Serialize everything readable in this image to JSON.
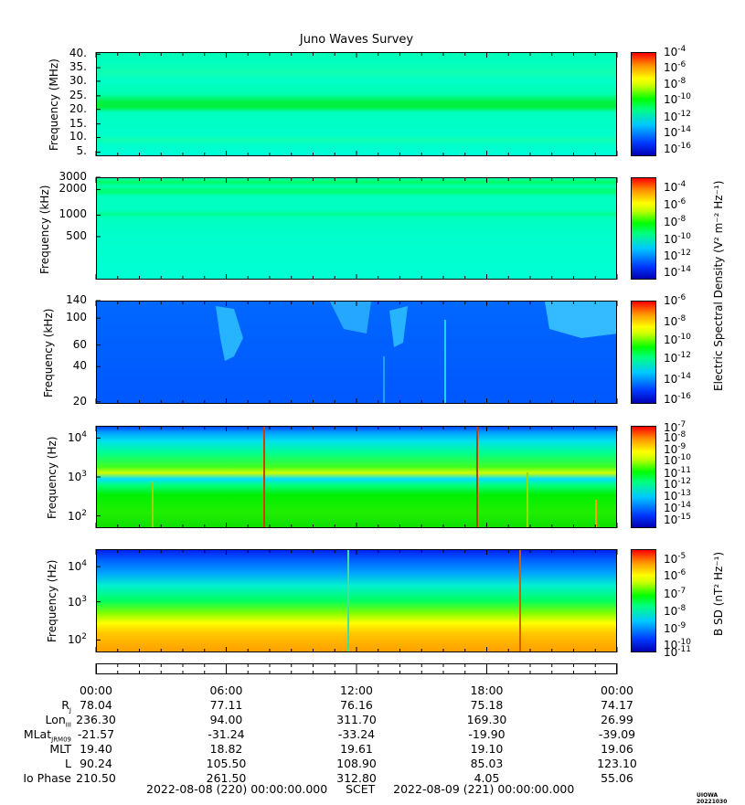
{
  "chart_data": {
    "type": "heatmap",
    "title": "Juno Waves Survey",
    "xlabel": "SCET",
    "time_range": [
      "2022-08-08 (220) 00:00:00.000",
      "2022-08-09 (221) 00:00:00.000"
    ],
    "x_ticks": [
      "00:00",
      "06:00",
      "12:00",
      "18:00",
      "00:00"
    ],
    "panels": [
      {
        "ylabel": "Frequency (MHz)",
        "y_ticks": [
          "40.",
          "35.",
          "30.",
          "25.",
          "20.",
          "15.",
          "10.",
          "5."
        ],
        "colorbar_ticks": [
          "10-4",
          "10-6",
          "10-8",
          "10-10",
          "10-12",
          "10-14",
          "10-16"
        ],
        "colorbar_ticks_display": [
          {
            "base": "10",
            "exp": "-4"
          },
          {
            "base": "10",
            "exp": "-6"
          },
          {
            "base": "10",
            "exp": "-8"
          },
          {
            "base": "10",
            "exp": "-10"
          },
          {
            "base": "10",
            "exp": "-12"
          },
          {
            "base": "10",
            "exp": "-14"
          },
          {
            "base": "10",
            "exp": "-16"
          }
        ]
      },
      {
        "ylabel": "Frequency (kHz)",
        "y_ticks": [
          "3000",
          "2000",
          "1000",
          "500"
        ],
        "colorbar_ticks_display": [
          {
            "base": "10",
            "exp": "-4"
          },
          {
            "base": "10",
            "exp": "-6"
          },
          {
            "base": "10",
            "exp": "-8"
          },
          {
            "base": "10",
            "exp": "-10"
          },
          {
            "base": "10",
            "exp": "-12"
          },
          {
            "base": "10",
            "exp": "-14"
          }
        ]
      },
      {
        "ylabel": "Frequency (kHz)",
        "y_ticks": [
          "140",
          "100",
          "60",
          "40",
          "20"
        ],
        "colorbar_ticks_display": [
          {
            "base": "10",
            "exp": "-6"
          },
          {
            "base": "10",
            "exp": "-8"
          },
          {
            "base": "10",
            "exp": "-10"
          },
          {
            "base": "10",
            "exp": "-12"
          },
          {
            "base": "10",
            "exp": "-14"
          },
          {
            "base": "10",
            "exp": "-16"
          }
        ]
      },
      {
        "ylabel": "Frequency (Hz)",
        "y_ticks_display": [
          {
            "base": "10",
            "exp": "4"
          },
          {
            "base": "10",
            "exp": "3"
          },
          {
            "base": "10",
            "exp": "2"
          }
        ],
        "colorbar_ticks_display": [
          {
            "base": "10",
            "exp": "-7"
          },
          {
            "base": "10",
            "exp": "-8"
          },
          {
            "base": "10",
            "exp": "-9"
          },
          {
            "base": "10",
            "exp": "-10"
          },
          {
            "base": "10",
            "exp": "-11"
          },
          {
            "base": "10",
            "exp": "-12"
          },
          {
            "base": "10",
            "exp": "-13"
          },
          {
            "base": "10",
            "exp": "-14"
          },
          {
            "base": "10",
            "exp": "-15"
          }
        ]
      },
      {
        "ylabel": "Frequency (Hz)",
        "y_ticks_display": [
          {
            "base": "10",
            "exp": "4"
          },
          {
            "base": "10",
            "exp": "3"
          },
          {
            "base": "10",
            "exp": "2"
          }
        ],
        "colorbar_ticks_display": [
          {
            "base": "10",
            "exp": "-5"
          },
          {
            "base": "10",
            "exp": "-6"
          },
          {
            "base": "10",
            "exp": "-7"
          },
          {
            "base": "10",
            "exp": "-8"
          },
          {
            "base": "10",
            "exp": "-9"
          },
          {
            "base": "10",
            "exp": "-10"
          },
          {
            "base": "10",
            "exp": "-11"
          }
        ]
      }
    ],
    "colorbar_label_electric": "Electric Spectral Density (V² m⁻² Hz⁻¹)",
    "colorbar_label_magnetic": "B SD (nT² Hz⁻¹)",
    "ephemeris": {
      "labels": [
        "R",
        "Lon",
        "MLat",
        "MLT",
        "L",
        "Io Phase"
      ],
      "label_subscripts": [
        "J",
        "III",
        "JRM09",
        "",
        "",
        ""
      ],
      "rows": [
        [
          "78.04",
          "77.11",
          "76.16",
          "75.18",
          "74.17"
        ],
        [
          "236.30",
          "94.00",
          "311.70",
          "169.30",
          "26.99"
        ],
        [
          "-21.57",
          "-31.24",
          "-33.24",
          "-19.90",
          "-39.09"
        ],
        [
          "19.40",
          "18.82",
          "19.61",
          "19.10",
          "19.06"
        ],
        [
          "90.24",
          "105.50",
          "108.90",
          "85.03",
          "123.10"
        ],
        [
          "210.50",
          "261.50",
          "312.80",
          "4.05",
          "55.06"
        ]
      ]
    },
    "footer": {
      "start": "2022-08-08 (220) 00:00:00.000",
      "scet": "SCET",
      "end": "2022-08-09 (221) 00:00:00.000"
    },
    "stamp": "UIOWA 20221030"
  }
}
